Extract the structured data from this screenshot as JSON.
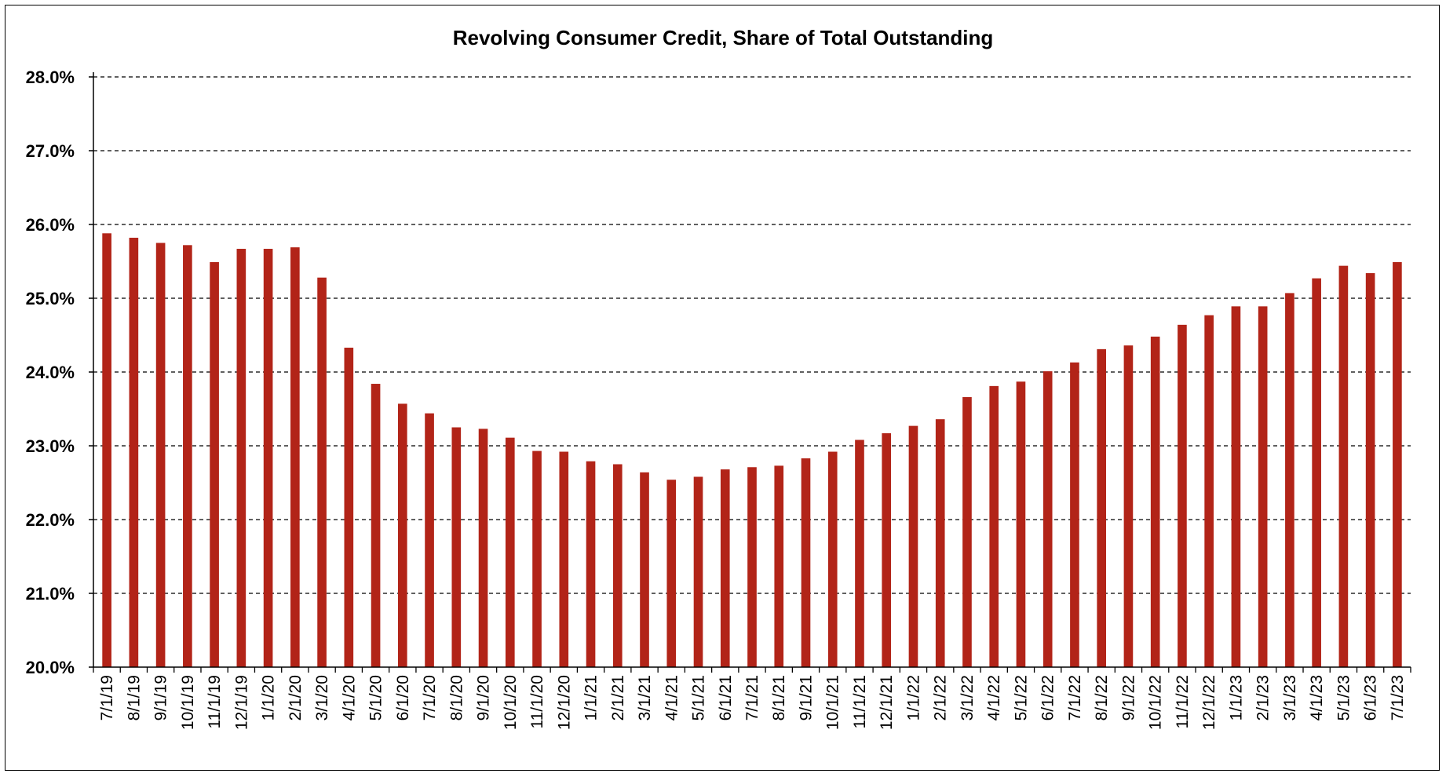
{
  "chart_data": {
    "type": "bar",
    "title": "Revolving Consumer Credit, Share of Total Outstanding",
    "xlabel": "",
    "ylabel": "",
    "ylim": [
      20.0,
      28.0
    ],
    "yticks": [
      "20.0%",
      "21.0%",
      "22.0%",
      "23.0%",
      "24.0%",
      "25.0%",
      "26.0%",
      "27.0%",
      "28.0%"
    ],
    "y_tick_values": [
      20,
      21,
      22,
      23,
      24,
      25,
      26,
      27,
      28
    ],
    "grid": "horizontal dashed",
    "legend": "none",
    "bar_color": "#B22418",
    "categories": [
      "7/1/19",
      "8/1/19",
      "9/1/19",
      "10/1/19",
      "11/1/19",
      "12/1/19",
      "1/1/20",
      "2/1/20",
      "3/1/20",
      "4/1/20",
      "5/1/20",
      "6/1/20",
      "7/1/20",
      "8/1/20",
      "9/1/20",
      "10/1/20",
      "11/1/20",
      "12/1/20",
      "1/1/21",
      "2/1/21",
      "3/1/21",
      "4/1/21",
      "5/1/21",
      "6/1/21",
      "7/1/21",
      "8/1/21",
      "9/1/21",
      "10/1/21",
      "11/1/21",
      "12/1/21",
      "1/1/22",
      "2/1/22",
      "3/1/22",
      "4/1/22",
      "5/1/22",
      "6/1/22",
      "7/1/22",
      "8/1/22",
      "9/1/22",
      "10/1/22",
      "11/1/22",
      "12/1/22",
      "1/1/23",
      "2/1/23",
      "3/1/23",
      "4/1/23",
      "5/1/23",
      "6/1/23",
      "7/1/23"
    ],
    "values": [
      25.88,
      25.82,
      25.75,
      25.72,
      25.49,
      25.67,
      25.67,
      25.69,
      25.28,
      24.33,
      23.84,
      23.57,
      23.44,
      23.25,
      23.23,
      23.11,
      22.93,
      22.92,
      22.79,
      22.75,
      22.64,
      22.54,
      22.58,
      22.68,
      22.71,
      22.73,
      22.83,
      22.92,
      23.08,
      23.17,
      23.27,
      23.36,
      23.66,
      23.81,
      23.87,
      24.01,
      24.13,
      24.31,
      24.36,
      24.48,
      24.64,
      24.77,
      24.89,
      24.89,
      25.07,
      25.27,
      25.44,
      25.34,
      25.49
    ]
  }
}
